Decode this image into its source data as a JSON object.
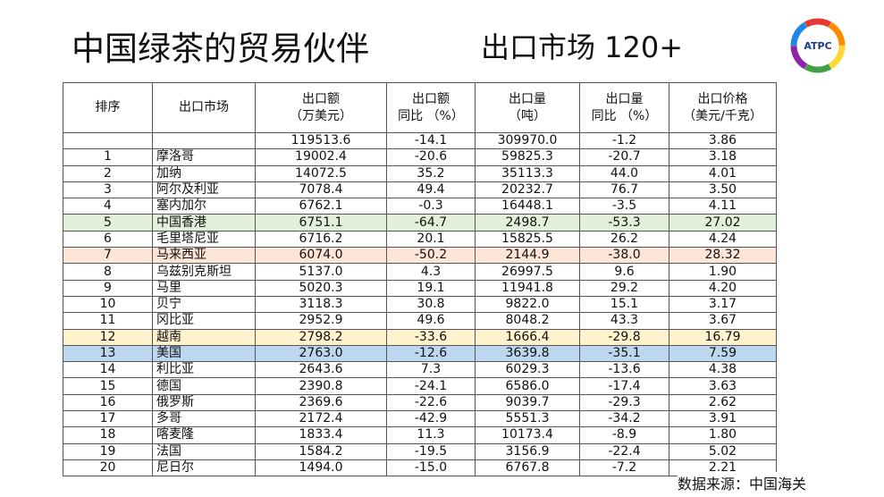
{
  "header": {
    "title": "中国绿茶的贸易伙伴",
    "subtitle": "出口市场 120+",
    "logo": "ATPC"
  },
  "table": {
    "headers": [
      [
        "排序"
      ],
      [
        "出口市场"
      ],
      [
        "出口额",
        "（万美元）"
      ],
      [
        "出口额",
        "同比 （%）"
      ],
      [
        "出口量",
        "（吨）"
      ],
      [
        "出口量",
        "同比 （%）"
      ],
      [
        "出口价格",
        "（美元/千克）"
      ]
    ],
    "total": [
      "119513.6",
      "-14.1",
      "309970.0",
      "-1.2",
      "3.86"
    ],
    "rows": [
      [
        "1",
        "摩洛哥",
        "19002.4",
        "-20.6",
        "59825.3",
        "-20.7",
        "3.18"
      ],
      [
        "2",
        "加纳",
        "14072.5",
        "35.2",
        "35113.3",
        "44.0",
        "4.01"
      ],
      [
        "3",
        "阿尔及利亚",
        "7078.4",
        "49.4",
        "20232.7",
        "76.7",
        "3.50"
      ],
      [
        "4",
        "塞内加尔",
        "6762.1",
        "-0.3",
        "16448.1",
        "-3.5",
        "4.11"
      ],
      [
        "5",
        "中国香港",
        "6751.1",
        "-64.7",
        "2498.7",
        "-53.3",
        "27.02"
      ],
      [
        "6",
        "毛里塔尼亚",
        "6716.2",
        "20.1",
        "15825.5",
        "26.2",
        "4.24"
      ],
      [
        "7",
        "马来西亚",
        "6074.0",
        "-50.2",
        "2144.9",
        "-38.0",
        "28.32"
      ],
      [
        "8",
        "乌兹别克斯坦",
        "5137.0",
        "4.3",
        "26997.5",
        "9.6",
        "1.90"
      ],
      [
        "9",
        "马里",
        "5020.3",
        "19.1",
        "11941.8",
        "29.2",
        "4.20"
      ],
      [
        "10",
        "贝宁",
        "3118.3",
        "30.8",
        "9822.0",
        "15.1",
        "3.17"
      ],
      [
        "11",
        "冈比亚",
        "2952.9",
        "49.6",
        "8048.2",
        "43.3",
        "3.67"
      ],
      [
        "12",
        "越南",
        "2798.2",
        "-33.6",
        "1666.4",
        "-29.8",
        "16.79"
      ],
      [
        "13",
        "美国",
        "2763.0",
        "-12.6",
        "3639.8",
        "-35.1",
        "7.59"
      ],
      [
        "14",
        "利比亚",
        "2643.6",
        "7.3",
        "6029.3",
        "-13.6",
        "4.38"
      ],
      [
        "15",
        "德国",
        "2390.8",
        "-24.1",
        "6586.0",
        "-17.4",
        "3.63"
      ],
      [
        "16",
        "俄罗斯",
        "2369.6",
        "-22.6",
        "9039.7",
        "-29.3",
        "2.62"
      ],
      [
        "17",
        "多哥",
        "2172.4",
        "-42.9",
        "5551.3",
        "-34.2",
        "3.91"
      ],
      [
        "18",
        "喀麦隆",
        "1833.4",
        "11.3",
        "10173.4",
        "-8.9",
        "1.80"
      ],
      [
        "19",
        "法国",
        "1584.2",
        "-19.5",
        "3156.9",
        "-22.4",
        "5.02"
      ],
      [
        "20",
        "尼日尔",
        "1494.0",
        "-15.0",
        "6767.8",
        "-7.2",
        "2.21"
      ]
    ]
  },
  "footer": {
    "source": "数据来源：中国海关"
  }
}
